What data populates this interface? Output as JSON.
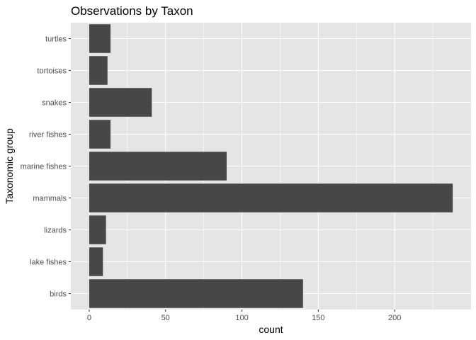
{
  "chart_data": {
    "type": "bar",
    "orientation": "horizontal",
    "title": "Observations by Taxon",
    "xlabel": "count",
    "ylabel": "Taxonomic group",
    "categories": [
      "birds",
      "lake fishes",
      "lizards",
      "mammals",
      "marine fishes",
      "river fishes",
      "snakes",
      "tortoises",
      "turtles"
    ],
    "values": [
      140,
      9,
      11,
      238,
      90,
      14,
      41,
      12,
      14
    ],
    "xlim": [
      -12,
      250
    ],
    "xticks": [
      0,
      50,
      100,
      150,
      200
    ],
    "xtick_labels": [
      "0",
      "50",
      "100",
      "150",
      "200"
    ],
    "grid": true,
    "colors": {
      "panel": "#e5e5e5",
      "grid_major": "#ffffff",
      "bar": "#474747",
      "tick": "#333333"
    }
  }
}
